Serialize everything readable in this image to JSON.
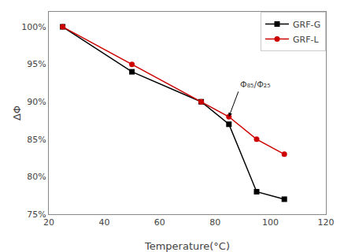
{
  "chart_data": {
    "type": "line",
    "x": [
      25,
      50,
      75,
      85,
      95,
      105
    ],
    "series": [
      {
        "name": "GRF-G",
        "color": "#000000",
        "marker": "square",
        "values": [
          1.0,
          0.94,
          0.9,
          0.87,
          0.78,
          0.77
        ]
      },
      {
        "name": "GRF-L",
        "color": "#cc0000",
        "marker": "circle",
        "values": [
          1.0,
          0.95,
          0.9,
          0.88,
          0.85,
          0.83
        ]
      }
    ],
    "xlabel": "Temperature(°C)",
    "ylabel": "ΔΦ",
    "xlim": [
      20,
      120
    ],
    "ylim": [
      0.75,
      1.02
    ],
    "xticks": [
      20,
      40,
      60,
      80,
      100,
      120
    ],
    "yticks": [
      {
        "value": 0.75,
        "label": "75%"
      },
      {
        "value": 0.8,
        "label": "80%"
      },
      {
        "value": 0.85,
        "label": "85%"
      },
      {
        "value": 0.9,
        "label": "90%"
      },
      {
        "value": 0.95,
        "label": "95%"
      },
      {
        "value": 1.0,
        "label": "100%"
      }
    ],
    "annotations": [
      {
        "text": "Φ₈₅/Φ₂₅",
        "x": 85,
        "y": 0.88
      }
    ],
    "legend": "upper right",
    "grid": false
  }
}
